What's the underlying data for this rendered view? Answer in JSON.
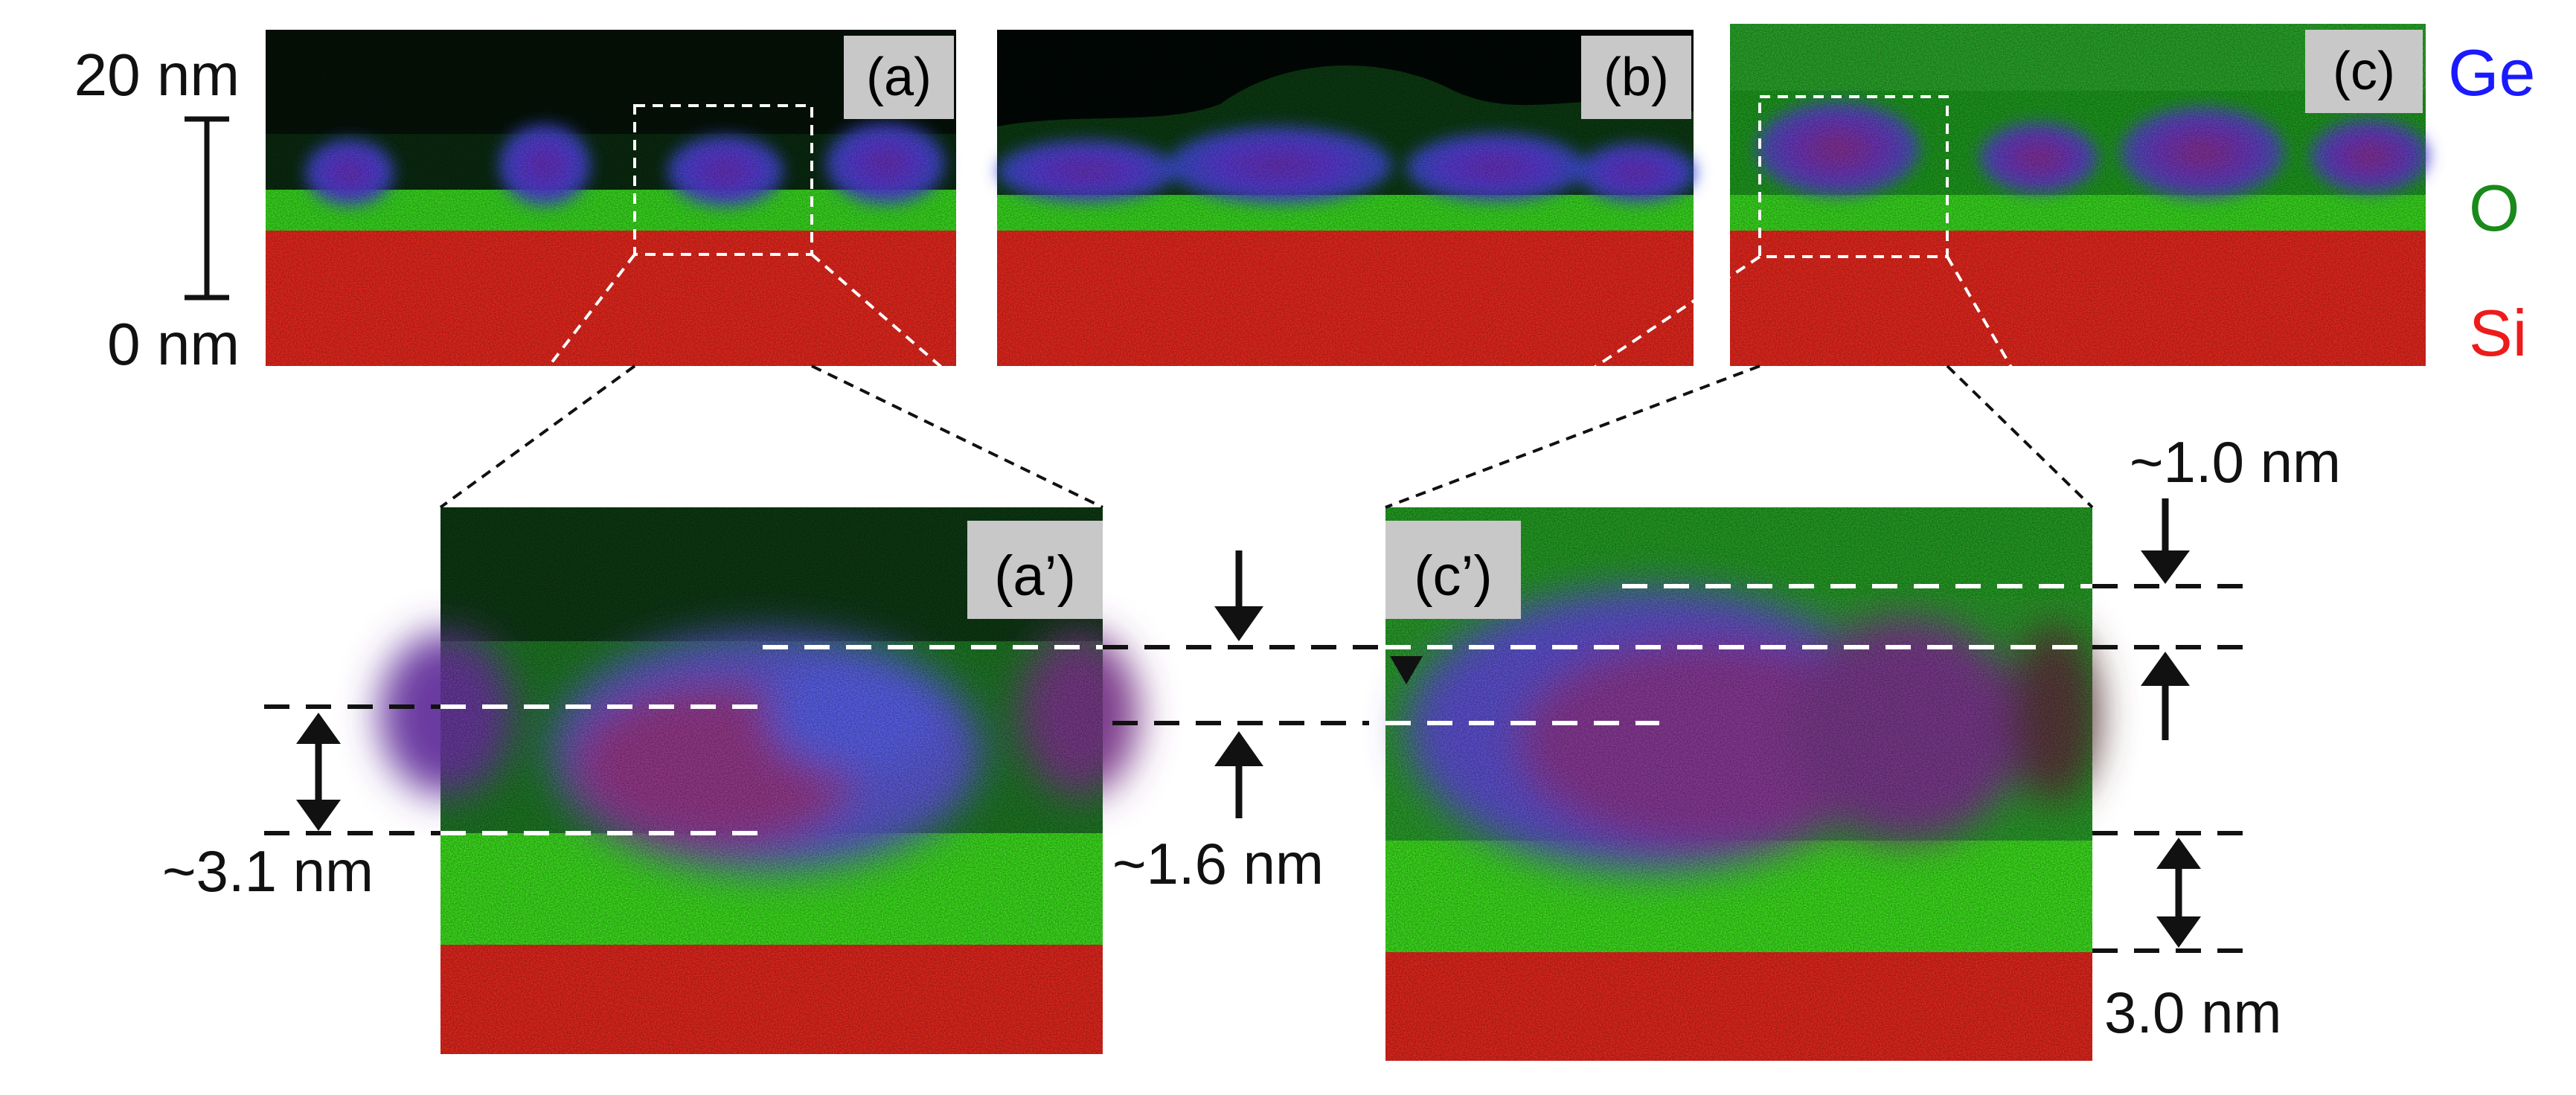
{
  "colors": {
    "ge": "#1a1aff",
    "o": "#1a8a1a",
    "si": "#ee1b1b",
    "map_si": "#e8281e",
    "map_o": "#39d91f",
    "map_ge": "#4a3fe0",
    "map_mix": "#8a3a9c",
    "map_top": "#0b3a12",
    "label_box": "#c8c8c8",
    "guide_dark": "#111111",
    "guide_white": "#ffffff"
  },
  "scale": {
    "top_label": "20 nm",
    "bottom_label": "0 nm"
  },
  "legend": {
    "ge": "Ge",
    "o": "O",
    "si": "Si"
  },
  "panels": {
    "a": {
      "tag": "(a)"
    },
    "b": {
      "tag": "(b)"
    },
    "c": {
      "tag": "(c)"
    },
    "a_zoom": {
      "tag": "(a’)"
    },
    "c_zoom": {
      "tag": "(c’)"
    }
  },
  "measurements": {
    "a_dot_height": "~3.1 nm",
    "a_oxide_gap": "~1.6 nm",
    "c_top_gap": "~1.0 nm",
    "c_oxide_thickness": "3.0 nm"
  }
}
